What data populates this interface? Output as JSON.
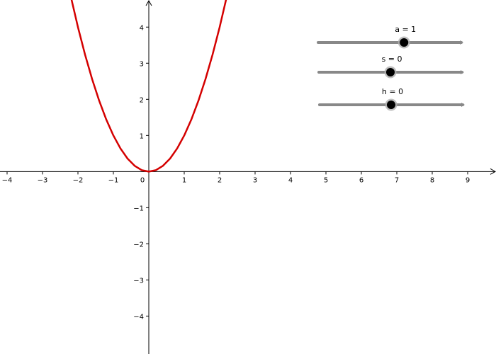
{
  "chart_data": {
    "type": "line",
    "title": "",
    "xlabel": "",
    "ylabel": "",
    "xlim": [
      -4.2,
      9.8
    ],
    "ylim": [
      -5.05,
      4.75
    ],
    "x_ticks": [
      -4,
      -3,
      -2,
      -1,
      0,
      1,
      2,
      3,
      4,
      5,
      6,
      7,
      8,
      9
    ],
    "y_ticks": [
      -4,
      -3,
      -2,
      -1,
      1,
      2,
      3,
      4
    ],
    "grid": false,
    "series": [
      {
        "color": "#d40000",
        "function": "a*(x-h)^2+s",
        "points": [
          [
            -2.2,
            4.84
          ],
          [
            -2.0,
            4.0
          ],
          [
            -1.8,
            3.24
          ],
          [
            -1.6,
            2.56
          ],
          [
            -1.4,
            1.96
          ],
          [
            -1.2,
            1.44
          ],
          [
            -1.0,
            1.0
          ],
          [
            -0.8,
            0.64
          ],
          [
            -0.6,
            0.36
          ],
          [
            -0.4,
            0.16
          ],
          [
            -0.2,
            0.04
          ],
          [
            0.0,
            0.0
          ],
          [
            0.2,
            0.04
          ],
          [
            0.4,
            0.16
          ],
          [
            0.6,
            0.36
          ],
          [
            0.8,
            0.64
          ],
          [
            1.0,
            1.0
          ],
          [
            1.2,
            1.44
          ],
          [
            1.4,
            1.96
          ],
          [
            1.6,
            2.56
          ],
          [
            1.8,
            3.24
          ],
          [
            2.0,
            4.0
          ],
          [
            2.2,
            4.84
          ]
        ]
      }
    ]
  },
  "sliders": [
    {
      "label": "a = 1",
      "value": 1,
      "fraction": 0.6
    },
    {
      "label": "s = 0",
      "value": 0,
      "fraction": 0.5
    },
    {
      "label": "h = 0",
      "value": 0,
      "fraction": 0.5
    }
  ],
  "colors": {
    "curve": "#d40000",
    "axis": "#000000",
    "slider_track": "#888888",
    "slider_knob": "#000000"
  }
}
